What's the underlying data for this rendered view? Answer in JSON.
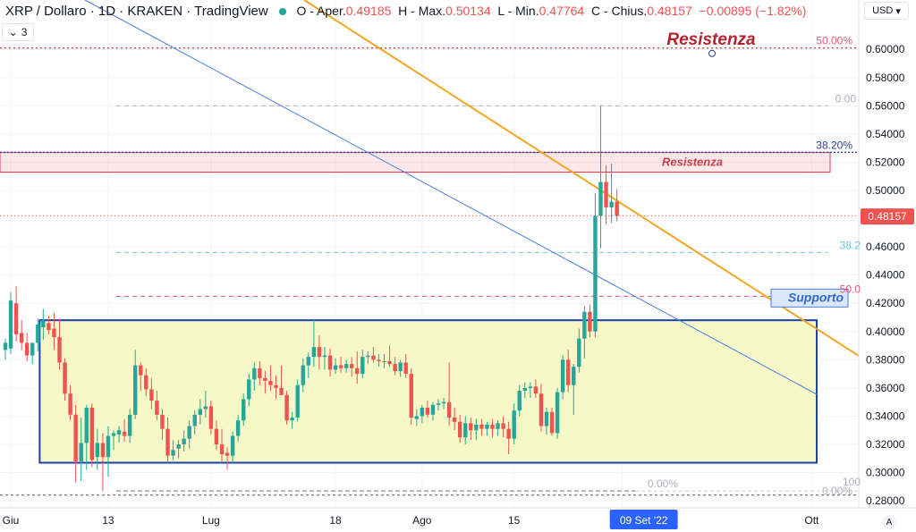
{
  "header": {
    "symbol": "XRP / Dollaro · 1D · KRAKEN · TradingView",
    "ohlc": [
      {
        "key": "O - Aper.",
        "value": "0.49185"
      },
      {
        "key": "H - Max.",
        "value": "0.50134"
      },
      {
        "key": "L - Min.",
        "value": "0.47764"
      },
      {
        "key": "C - Chius.",
        "value": "0.48157"
      },
      {
        "key": "",
        "value": "−0.00895 (−1.82%)"
      }
    ],
    "indicator_count": "3",
    "currency": "USD"
  },
  "colors": {
    "up": "#26a69a",
    "down": "#ef5350",
    "fib": "#e05b72",
    "trend_orange": "#f5a623",
    "trend_blue": "#4a7fe0",
    "box": "#1e40af",
    "box_fill": "#f6f8c8"
  },
  "chart_data": {
    "type": "candlestick",
    "ylim": [
      0.275,
      0.635
    ],
    "y_ticks": [
      "0.28000",
      "0.30000",
      "0.32000",
      "0.34000",
      "0.36000",
      "0.38000",
      "0.40000",
      "0.42000",
      "0.44000",
      "0.46000",
      "0.48000",
      "0.50000",
      "0.52000",
      "0.54000",
      "0.56000",
      "0.58000",
      "0.60000"
    ],
    "x_labels": [
      "Giu",
      "13",
      "Lug",
      "18",
      "Ago",
      "15",
      "Set",
      "Ott"
    ],
    "last_price": "0.48157",
    "crosshair_date": "09 Set '22",
    "annotations": {
      "resistance_top": "Resistenza",
      "resistance_zone": "Resistenza",
      "support": "Supporto"
    },
    "fib_labels": [
      {
        "text": "50.00%",
        "price": 0.601
      },
      {
        "text": "0.00",
        "price": 0.56
      },
      {
        "text": "38.20%",
        "price": 0.527
      },
      {
        "text": "38.2",
        "price": 0.456
      },
      {
        "text": "50.0",
        "price": 0.425
      },
      {
        "text": "100",
        "price": 0.287
      },
      {
        "text": "0.00%",
        "price": 0.287
      },
      {
        "text": "0.00%",
        "price": 0.287
      }
    ],
    "resistance_zone_range": [
      0.513,
      0.527
    ],
    "range_box": [
      0.307,
      0.408
    ],
    "candles": [
      {
        "o": 0.387,
        "h": 0.395,
        "l": 0.38,
        "c": 0.392
      },
      {
        "o": 0.388,
        "h": 0.428,
        "l": 0.384,
        "c": 0.422
      },
      {
        "o": 0.42,
        "h": 0.432,
        "l": 0.393,
        "c": 0.398
      },
      {
        "o": 0.399,
        "h": 0.408,
        "l": 0.387,
        "c": 0.392
      },
      {
        "o": 0.392,
        "h": 0.399,
        "l": 0.379,
        "c": 0.383
      },
      {
        "o": 0.383,
        "h": 0.392,
        "l": 0.377,
        "c": 0.392
      },
      {
        "o": 0.392,
        "h": 0.409,
        "l": 0.386,
        "c": 0.405
      },
      {
        "o": 0.403,
        "h": 0.416,
        "l": 0.394,
        "c": 0.408
      },
      {
        "o": 0.406,
        "h": 0.411,
        "l": 0.398,
        "c": 0.401
      },
      {
        "o": 0.402,
        "h": 0.413,
        "l": 0.387,
        "c": 0.396
      },
      {
        "o": 0.396,
        "h": 0.409,
        "l": 0.373,
        "c": 0.378
      },
      {
        "o": 0.378,
        "h": 0.381,
        "l": 0.351,
        "c": 0.356
      },
      {
        "o": 0.356,
        "h": 0.362,
        "l": 0.337,
        "c": 0.341
      },
      {
        "o": 0.341,
        "h": 0.348,
        "l": 0.293,
        "c": 0.308
      },
      {
        "o": 0.308,
        "h": 0.339,
        "l": 0.294,
        "c": 0.321
      },
      {
        "o": 0.321,
        "h": 0.348,
        "l": 0.302,
        "c": 0.346
      },
      {
        "o": 0.346,
        "h": 0.349,
        "l": 0.304,
        "c": 0.309
      },
      {
        "o": 0.311,
        "h": 0.331,
        "l": 0.302,
        "c": 0.321
      },
      {
        "o": 0.321,
        "h": 0.328,
        "l": 0.287,
        "c": 0.311
      },
      {
        "o": 0.311,
        "h": 0.333,
        "l": 0.297,
        "c": 0.326
      },
      {
        "o": 0.326,
        "h": 0.33,
        "l": 0.316,
        "c": 0.328
      },
      {
        "o": 0.327,
        "h": 0.333,
        "l": 0.321,
        "c": 0.33
      },
      {
        "o": 0.329,
        "h": 0.338,
        "l": 0.322,
        "c": 0.326
      },
      {
        "o": 0.326,
        "h": 0.345,
        "l": 0.321,
        "c": 0.341
      },
      {
        "o": 0.341,
        "h": 0.387,
        "l": 0.338,
        "c": 0.376
      },
      {
        "o": 0.376,
        "h": 0.378,
        "l": 0.358,
        "c": 0.369
      },
      {
        "o": 0.369,
        "h": 0.374,
        "l": 0.354,
        "c": 0.359
      },
      {
        "o": 0.359,
        "h": 0.367,
        "l": 0.345,
        "c": 0.351
      },
      {
        "o": 0.351,
        "h": 0.358,
        "l": 0.337,
        "c": 0.341
      },
      {
        "o": 0.341,
        "h": 0.345,
        "l": 0.323,
        "c": 0.331
      },
      {
        "o": 0.331,
        "h": 0.339,
        "l": 0.307,
        "c": 0.312
      },
      {
        "o": 0.312,
        "h": 0.323,
        "l": 0.309,
        "c": 0.316
      },
      {
        "o": 0.317,
        "h": 0.323,
        "l": 0.31,
        "c": 0.32
      },
      {
        "o": 0.32,
        "h": 0.33,
        "l": 0.315,
        "c": 0.324
      },
      {
        "o": 0.324,
        "h": 0.337,
        "l": 0.317,
        "c": 0.333
      },
      {
        "o": 0.333,
        "h": 0.344,
        "l": 0.327,
        "c": 0.341
      },
      {
        "o": 0.341,
        "h": 0.352,
        "l": 0.334,
        "c": 0.345
      },
      {
        "o": 0.345,
        "h": 0.358,
        "l": 0.339,
        "c": 0.347
      },
      {
        "o": 0.347,
        "h": 0.351,
        "l": 0.327,
        "c": 0.331
      },
      {
        "o": 0.331,
        "h": 0.337,
        "l": 0.316,
        "c": 0.32
      },
      {
        "o": 0.32,
        "h": 0.331,
        "l": 0.308,
        "c": 0.313
      },
      {
        "o": 0.314,
        "h": 0.318,
        "l": 0.302,
        "c": 0.312
      },
      {
        "o": 0.312,
        "h": 0.329,
        "l": 0.306,
        "c": 0.326
      },
      {
        "o": 0.326,
        "h": 0.341,
        "l": 0.322,
        "c": 0.337
      },
      {
        "o": 0.337,
        "h": 0.356,
        "l": 0.333,
        "c": 0.352
      },
      {
        "o": 0.352,
        "h": 0.37,
        "l": 0.347,
        "c": 0.366
      },
      {
        "o": 0.366,
        "h": 0.378,
        "l": 0.358,
        "c": 0.374
      },
      {
        "o": 0.374,
        "h": 0.379,
        "l": 0.362,
        "c": 0.367
      },
      {
        "o": 0.367,
        "h": 0.372,
        "l": 0.356,
        "c": 0.365
      },
      {
        "o": 0.365,
        "h": 0.376,
        "l": 0.358,
        "c": 0.362
      },
      {
        "o": 0.362,
        "h": 0.369,
        "l": 0.352,
        "c": 0.36
      },
      {
        "o": 0.36,
        "h": 0.376,
        "l": 0.355,
        "c": 0.355
      },
      {
        "o": 0.355,
        "h": 0.358,
        "l": 0.334,
        "c": 0.337
      },
      {
        "o": 0.337,
        "h": 0.343,
        "l": 0.331,
        "c": 0.339
      },
      {
        "o": 0.339,
        "h": 0.366,
        "l": 0.336,
        "c": 0.362
      },
      {
        "o": 0.362,
        "h": 0.381,
        "l": 0.357,
        "c": 0.376
      },
      {
        "o": 0.376,
        "h": 0.385,
        "l": 0.367,
        "c": 0.382
      },
      {
        "o": 0.382,
        "h": 0.409,
        "l": 0.375,
        "c": 0.389
      },
      {
        "o": 0.389,
        "h": 0.397,
        "l": 0.373,
        "c": 0.382
      },
      {
        "o": 0.382,
        "h": 0.389,
        "l": 0.373,
        "c": 0.383
      },
      {
        "o": 0.383,
        "h": 0.388,
        "l": 0.368,
        "c": 0.373
      },
      {
        "o": 0.373,
        "h": 0.381,
        "l": 0.37,
        "c": 0.376
      },
      {
        "o": 0.376,
        "h": 0.382,
        "l": 0.371,
        "c": 0.374
      },
      {
        "o": 0.374,
        "h": 0.38,
        "l": 0.371,
        "c": 0.377
      },
      {
        "o": 0.377,
        "h": 0.382,
        "l": 0.368,
        "c": 0.374
      },
      {
        "o": 0.374,
        "h": 0.386,
        "l": 0.363,
        "c": 0.37
      },
      {
        "o": 0.37,
        "h": 0.387,
        "l": 0.367,
        "c": 0.382
      },
      {
        "o": 0.382,
        "h": 0.386,
        "l": 0.377,
        "c": 0.383
      },
      {
        "o": 0.383,
        "h": 0.389,
        "l": 0.378,
        "c": 0.38
      },
      {
        "o": 0.38,
        "h": 0.384,
        "l": 0.375,
        "c": 0.379
      },
      {
        "o": 0.379,
        "h": 0.384,
        "l": 0.374,
        "c": 0.379
      },
      {
        "o": 0.379,
        "h": 0.39,
        "l": 0.375,
        "c": 0.377
      },
      {
        "o": 0.377,
        "h": 0.382,
        "l": 0.369,
        "c": 0.372
      },
      {
        "o": 0.372,
        "h": 0.38,
        "l": 0.368,
        "c": 0.378
      },
      {
        "o": 0.378,
        "h": 0.384,
        "l": 0.367,
        "c": 0.37
      },
      {
        "o": 0.37,
        "h": 0.374,
        "l": 0.334,
        "c": 0.339
      },
      {
        "o": 0.338,
        "h": 0.345,
        "l": 0.333,
        "c": 0.34
      },
      {
        "o": 0.34,
        "h": 0.348,
        "l": 0.335,
        "c": 0.346
      },
      {
        "o": 0.346,
        "h": 0.351,
        "l": 0.339,
        "c": 0.341
      },
      {
        "o": 0.341,
        "h": 0.35,
        "l": 0.337,
        "c": 0.348
      },
      {
        "o": 0.348,
        "h": 0.352,
        "l": 0.344,
        "c": 0.349
      },
      {
        "o": 0.349,
        "h": 0.353,
        "l": 0.345,
        "c": 0.35
      },
      {
        "o": 0.35,
        "h": 0.378,
        "l": 0.333,
        "c": 0.339
      },
      {
        "o": 0.339,
        "h": 0.346,
        "l": 0.33,
        "c": 0.336
      },
      {
        "o": 0.336,
        "h": 0.341,
        "l": 0.321,
        "c": 0.325
      },
      {
        "o": 0.325,
        "h": 0.34,
        "l": 0.32,
        "c": 0.335
      },
      {
        "o": 0.335,
        "h": 0.339,
        "l": 0.323,
        "c": 0.33
      },
      {
        "o": 0.33,
        "h": 0.338,
        "l": 0.323,
        "c": 0.334
      },
      {
        "o": 0.334,
        "h": 0.338,
        "l": 0.326,
        "c": 0.331
      },
      {
        "o": 0.331,
        "h": 0.336,
        "l": 0.326,
        "c": 0.334
      },
      {
        "o": 0.334,
        "h": 0.338,
        "l": 0.325,
        "c": 0.331
      },
      {
        "o": 0.331,
        "h": 0.337,
        "l": 0.326,
        "c": 0.335
      },
      {
        "o": 0.335,
        "h": 0.34,
        "l": 0.325,
        "c": 0.331
      },
      {
        "o": 0.331,
        "h": 0.336,
        "l": 0.313,
        "c": 0.324
      },
      {
        "o": 0.324,
        "h": 0.349,
        "l": 0.32,
        "c": 0.344
      },
      {
        "o": 0.344,
        "h": 0.362,
        "l": 0.34,
        "c": 0.358
      },
      {
        "o": 0.358,
        "h": 0.364,
        "l": 0.353,
        "c": 0.36
      },
      {
        "o": 0.36,
        "h": 0.364,
        "l": 0.353,
        "c": 0.361
      },
      {
        "o": 0.361,
        "h": 0.366,
        "l": 0.353,
        "c": 0.356
      },
      {
        "o": 0.356,
        "h": 0.363,
        "l": 0.329,
        "c": 0.333
      },
      {
        "o": 0.333,
        "h": 0.346,
        "l": 0.327,
        "c": 0.343
      },
      {
        "o": 0.343,
        "h": 0.346,
        "l": 0.326,
        "c": 0.328
      },
      {
        "o": 0.328,
        "h": 0.36,
        "l": 0.324,
        "c": 0.357
      },
      {
        "o": 0.357,
        "h": 0.383,
        "l": 0.352,
        "c": 0.38
      },
      {
        "o": 0.38,
        "h": 0.387,
        "l": 0.357,
        "c": 0.362
      },
      {
        "o": 0.362,
        "h": 0.377,
        "l": 0.341,
        "c": 0.375
      },
      {
        "o": 0.375,
        "h": 0.402,
        "l": 0.371,
        "c": 0.395
      },
      {
        "o": 0.395,
        "h": 0.418,
        "l": 0.381,
        "c": 0.414
      },
      {
        "o": 0.414,
        "h": 0.419,
        "l": 0.396,
        "c": 0.4
      },
      {
        "o": 0.4,
        "h": 0.498,
        "l": 0.396,
        "c": 0.482
      },
      {
        "o": 0.482,
        "h": 0.56,
        "l": 0.459,
        "c": 0.506
      },
      {
        "o": 0.506,
        "h": 0.518,
        "l": 0.476,
        "c": 0.488
      },
      {
        "o": 0.488,
        "h": 0.519,
        "l": 0.477,
        "c": 0.492
      },
      {
        "o": 0.492,
        "h": 0.501,
        "l": 0.478,
        "c": 0.482
      }
    ]
  }
}
